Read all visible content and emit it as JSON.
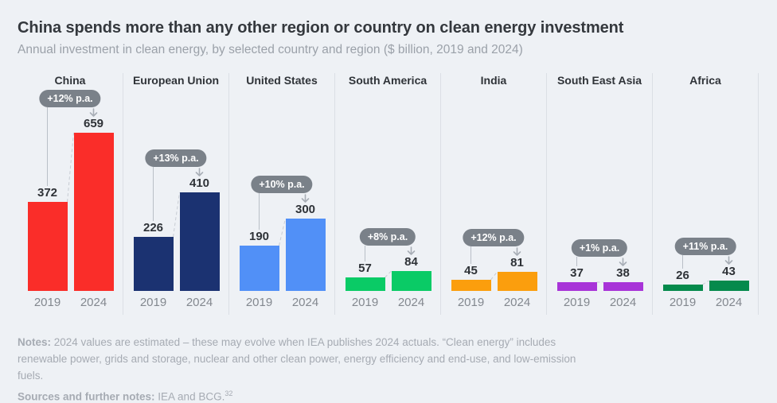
{
  "header": {
    "title": "China spends more than any other region or country on clean energy investment",
    "subtitle": "Annual investment in clean energy, by selected country and region ($ billion, 2019 and 2024)"
  },
  "chart_data": {
    "type": "bar",
    "unit": "$ billion",
    "categories": [
      "2019",
      "2024"
    ],
    "ylim": [
      0,
      659
    ],
    "grid": false,
    "legend": false,
    "panels": [
      {
        "name": "China",
        "growth_label": "+12% p.a.",
        "values": [
          372,
          659
        ],
        "color": "#FA2D29"
      },
      {
        "name": "European Union",
        "growth_label": "+13% p.a.",
        "values": [
          226,
          410
        ],
        "color": "#1B3271"
      },
      {
        "name": "United States",
        "growth_label": "+10% p.a.",
        "values": [
          190,
          300
        ],
        "color": "#5190F7"
      },
      {
        "name": "South America",
        "growth_label": "+8% p.a.",
        "values": [
          57,
          84
        ],
        "color": "#0ACB66"
      },
      {
        "name": "India",
        "growth_label": "+12% p.a.",
        "values": [
          45,
          81
        ],
        "color": "#FB9E0D"
      },
      {
        "name": "South East Asia",
        "growth_label": "+1% p.a.",
        "values": [
          37,
          38
        ],
        "color": "#A834D8"
      },
      {
        "name": "Africa",
        "growth_label": "+11% p.a.",
        "values": [
          26,
          43
        ],
        "color": "#058A4C"
      }
    ]
  },
  "footer": {
    "notes_label": "Notes:",
    "notes_text": " 2024 values are estimated – these may evolve when IEA publishes 2024 actuals. “Clean energy” includes renewable power, grids and storage, nuclear and other clean power, energy efficiency and end-use, and low-emission fuels.",
    "sources_label": "Sources and further notes:",
    "sources_text": " IEA and BCG.",
    "sources_footnote": "32"
  },
  "colors": {
    "background": "#EEF1F5",
    "badge": "#7A8189",
    "separator": "#DBDFE5",
    "connector": "#B9BFC7",
    "dashed_connector": "#C8CDD4",
    "arrow": "#A8AEB6"
  }
}
